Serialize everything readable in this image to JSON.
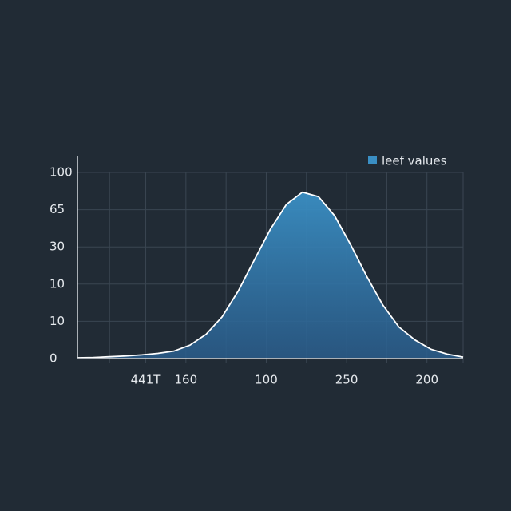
{
  "chart_data": {
    "type": "area",
    "series": [
      {
        "name": "leef values",
        "color": "#3a8fc4",
        "x": [
          0,
          2,
          4,
          6,
          8,
          10,
          12,
          14,
          16,
          18,
          20,
          22,
          24,
          26,
          28,
          30,
          32,
          34,
          36,
          38,
          40,
          42,
          44,
          46,
          48
        ],
        "values": [
          0.02,
          0.03,
          0.05,
          0.07,
          0.1,
          0.14,
          0.2,
          0.36,
          0.65,
          1.12,
          1.81,
          2.64,
          3.47,
          4.14,
          4.47,
          4.35,
          3.84,
          3.06,
          2.21,
          1.44,
          0.85,
          0.5,
          0.25,
          0.12,
          0.04
        ]
      }
    ],
    "xlim": [
      0,
      48
    ],
    "xticks": [
      {
        "value": 8.5,
        "label": "441T"
      },
      {
        "value": 13.5,
        "label": "160"
      },
      {
        "value": 23.5,
        "label": "100"
      },
      {
        "value": 33.5,
        "label": "250"
      },
      {
        "value": 43.5,
        "label": "200"
      }
    ],
    "xgrid": [
      4,
      18.5,
      28.5,
      38.5,
      48
    ],
    "ylim": [
      0,
      5
    ],
    "yticks": [
      {
        "value": 0,
        "label": "0"
      },
      {
        "value": 1,
        "label": "10"
      },
      {
        "value": 2,
        "label": "10"
      },
      {
        "value": 3,
        "label": "30"
      },
      {
        "value": 4,
        "label": "65"
      },
      {
        "value": 5,
        "label": "100"
      }
    ],
    "grid": true,
    "legend": "top-right"
  }
}
